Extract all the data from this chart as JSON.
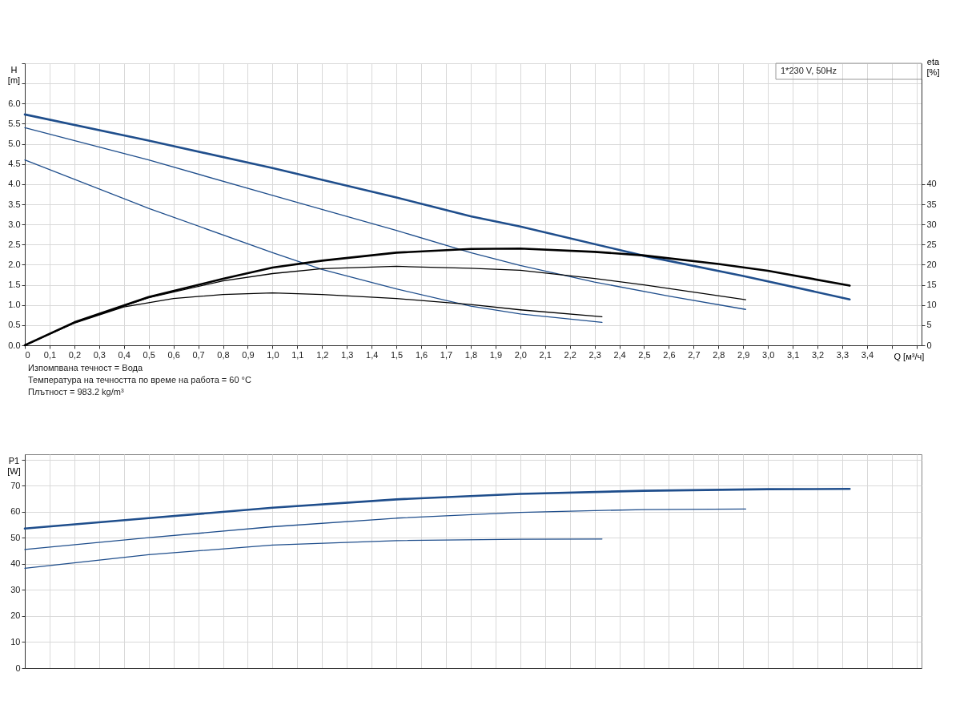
{
  "chart_data": [
    {
      "type": "line",
      "title": "1*230 V, 50Hz",
      "xlabel": "Q [м³/ч]",
      "ylabel": "H\n[m]",
      "y2label": "eta\n[%]",
      "grid": true,
      "xlim": [
        0,
        3.62
      ],
      "ylim": [
        0,
        7.0
      ],
      "y2lim": [
        0,
        70
      ],
      "xticks": [
        0,
        {
          "value": 0.1,
          "label": "0,1"
        },
        {
          "value": 0.2,
          "label": "0,2"
        },
        {
          "value": 0.3,
          "label": "0,3"
        },
        {
          "value": 0.4,
          "label": "0,4"
        },
        {
          "value": 0.5,
          "label": "0,5"
        },
        {
          "value": 0.6,
          "label": "0,6"
        },
        {
          "value": 0.7,
          "label": "0,7"
        },
        {
          "value": 0.8,
          "label": "0,8"
        },
        {
          "value": 0.9,
          "label": "0,9"
        },
        {
          "value": 1.0,
          "label": "1,0"
        },
        {
          "value": 1.1,
          "label": "1,1"
        },
        {
          "value": 1.2,
          "label": "1,2"
        },
        {
          "value": 1.3,
          "label": "1,3"
        },
        {
          "value": 1.4,
          "label": "1,4"
        },
        {
          "value": 1.5,
          "label": "1,5"
        },
        {
          "value": 1.6,
          "label": "1,6"
        },
        {
          "value": 1.7,
          "label": "1,7"
        },
        {
          "value": 1.8,
          "label": "1,8"
        },
        {
          "value": 1.9,
          "label": "1,9"
        },
        {
          "value": 2.0,
          "label": "2,0"
        },
        {
          "value": 2.1,
          "label": "2,1"
        },
        {
          "value": 2.2,
          "label": "2,2"
        },
        {
          "value": 2.3,
          "label": "2,3"
        },
        {
          "value": 2.4,
          "label": "2,4"
        },
        {
          "value": 2.5,
          "label": "2,5"
        },
        {
          "value": 2.6,
          "label": "2,6"
        },
        {
          "value": 2.7,
          "label": "2,7"
        },
        {
          "value": 2.8,
          "label": "2,8"
        },
        {
          "value": 2.9,
          "label": "2,9"
        },
        {
          "value": 3.0,
          "label": "3,0"
        },
        {
          "value": 3.1,
          "label": "3,1"
        },
        {
          "value": 3.2,
          "label": "3,2"
        },
        {
          "value": 3.3,
          "label": "3,3"
        },
        {
          "value": 3.4,
          "label": "3,4"
        },
        {
          "value": 3.5,
          "label": null
        },
        {
          "value": 3.6,
          "label": null
        }
      ],
      "yticks": [
        {
          "value": 0,
          "label": "0.0"
        },
        {
          "value": 0.5,
          "label": "0.5"
        },
        {
          "value": 1,
          "label": "1.0"
        },
        {
          "value": 1.5,
          "label": "1.5"
        },
        {
          "value": 2,
          "label": "2.0"
        },
        {
          "value": 2.5,
          "label": "2.5"
        },
        {
          "value": 3,
          "label": "3.0"
        },
        {
          "value": 3.5,
          "label": "3.5"
        },
        {
          "value": 4,
          "label": "4.0"
        },
        {
          "value": 4.5,
          "label": "4.5"
        },
        {
          "value": 5,
          "label": "5.0"
        },
        {
          "value": 5.5,
          "label": "5.5"
        },
        {
          "value": 6,
          "label": "6.0"
        },
        {
          "value": 6.5,
          "label": null
        },
        {
          "value": 7,
          "label": null
        }
      ],
      "y2ticks": [
        0,
        5,
        10,
        15,
        20,
        25,
        30,
        35,
        40
      ],
      "series": [
        {
          "color": "#1f4e8c",
          "x": [
            0,
            0.5,
            1.0,
            1.5,
            1.8,
            2.0,
            2.5,
            2.9,
            3.33
          ],
          "values": [
            5.73,
            5.08,
            4.4,
            3.67,
            3.2,
            2.95,
            2.22,
            1.72,
            1.14
          ]
        },
        {
          "color": "#1f4e8c",
          "x": [
            0,
            0.5,
            1.0,
            1.5,
            1.8,
            2.0,
            2.3,
            2.6,
            2.91
          ],
          "values": [
            5.4,
            4.6,
            3.72,
            2.85,
            2.3,
            1.98,
            1.57,
            1.22,
            0.89
          ]
        },
        {
          "color": "#1f4e8c",
          "x": [
            0,
            0.5,
            1.0,
            1.2,
            1.5,
            1.8,
            2.0,
            2.33
          ],
          "values": [
            4.6,
            3.4,
            2.3,
            1.88,
            1.4,
            0.97,
            0.78,
            0.57
          ]
        },
        {
          "color": "#000000",
          "axis": "y2",
          "x": [
            0,
            0.2,
            0.5,
            0.8,
            1.0,
            1.2,
            1.5,
            1.8,
            2.0,
            2.3,
            2.5,
            2.8,
            3.0,
            3.33
          ],
          "values": [
            0,
            5.7,
            12,
            16.5,
            19.3,
            21,
            23,
            23.9,
            24,
            23.2,
            22.3,
            20.2,
            18.5,
            14.8
          ]
        },
        {
          "color": "#000000",
          "axis": "y2",
          "x": [
            0,
            0.2,
            0.5,
            0.8,
            1.0,
            1.2,
            1.5,
            1.8,
            2.0,
            2.3,
            2.5,
            2.91
          ],
          "values": [
            0,
            5.6,
            11.8,
            16,
            17.8,
            19,
            19.6,
            19.1,
            18.6,
            16.6,
            15,
            11.3
          ]
        },
        {
          "color": "#000000",
          "axis": "y2",
          "x": [
            0,
            0.2,
            0.4,
            0.6,
            0.8,
            1.0,
            1.2,
            1.5,
            1.8,
            2.0,
            2.33
          ],
          "values": [
            0,
            5.5,
            9.5,
            11.6,
            12.6,
            13,
            12.6,
            11.6,
            10.1,
            8.8,
            7.1
          ]
        }
      ],
      "annotations": [
        "Изпомпвана течност = Вода",
        "Температура на течността по време на работа = 60 °C",
        "Плътност = 983.2 kg/m³"
      ]
    },
    {
      "type": "line",
      "ylabel": "P1\n[W]",
      "grid": true,
      "tick_labels": "y",
      "xlim": [
        0,
        3.62
      ],
      "ylim": [
        0,
        82
      ],
      "xticks": [
        0,
        0.1,
        0.2,
        0.3,
        0.4,
        0.5,
        0.6,
        0.7,
        0.8,
        0.9,
        1.0,
        1.1,
        1.2,
        1.3,
        1.4,
        1.5,
        1.6,
        1.7,
        1.8,
        1.9,
        2.0,
        2.1,
        2.2,
        2.3,
        2.4,
        2.5,
        2.6,
        2.7,
        2.8,
        2.9,
        3.0,
        3.1,
        3.2,
        3.3,
        3.4,
        3.5,
        3.6
      ],
      "yticks": [
        0,
        10,
        20,
        30,
        40,
        50,
        60,
        70,
        {
          "value": 80,
          "label": null
        }
      ],
      "series": [
        {
          "color": "#1f4e8c",
          "x": [
            0,
            0.5,
            1.0,
            1.5,
            2.0,
            2.5,
            3.0,
            3.33
          ],
          "values": [
            53.5,
            57.5,
            61.5,
            64.7,
            66.8,
            68.0,
            68.6,
            68.7
          ]
        },
        {
          "color": "#1f4e8c",
          "x": [
            0,
            0.5,
            1.0,
            1.5,
            2.0,
            2.5,
            2.91
          ],
          "values": [
            45.5,
            50,
            54.2,
            57.5,
            59.7,
            60.8,
            61
          ]
        },
        {
          "color": "#1f4e8c",
          "x": [
            0,
            0.5,
            1.0,
            1.5,
            2.0,
            2.33
          ],
          "values": [
            38.3,
            43.5,
            47.2,
            48.9,
            49.4,
            49.5
          ]
        }
      ]
    }
  ]
}
